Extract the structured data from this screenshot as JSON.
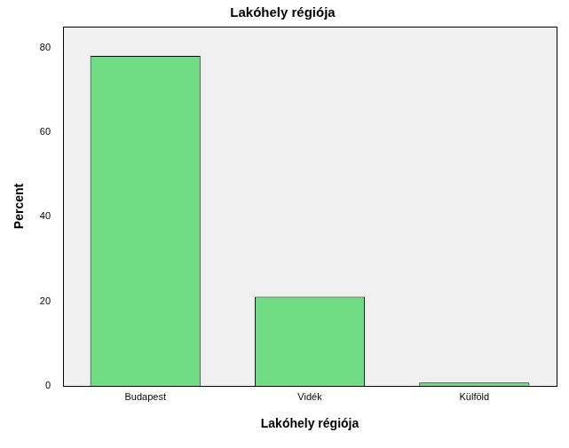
{
  "chart_data": {
    "type": "bar",
    "title": "Lakóhely régiója",
    "x_label": "Lakóhely régiója",
    "y_label": "Percent",
    "categories": [
      "Budapest",
      "Vidék",
      "Külföld"
    ],
    "values": [
      78.1,
      21.1,
      0.8
    ],
    "color": "#70dc84",
    "ylim": [
      0,
      85
    ],
    "yticks": [
      0,
      20,
      40,
      60,
      80
    ],
    "grid": false
  }
}
